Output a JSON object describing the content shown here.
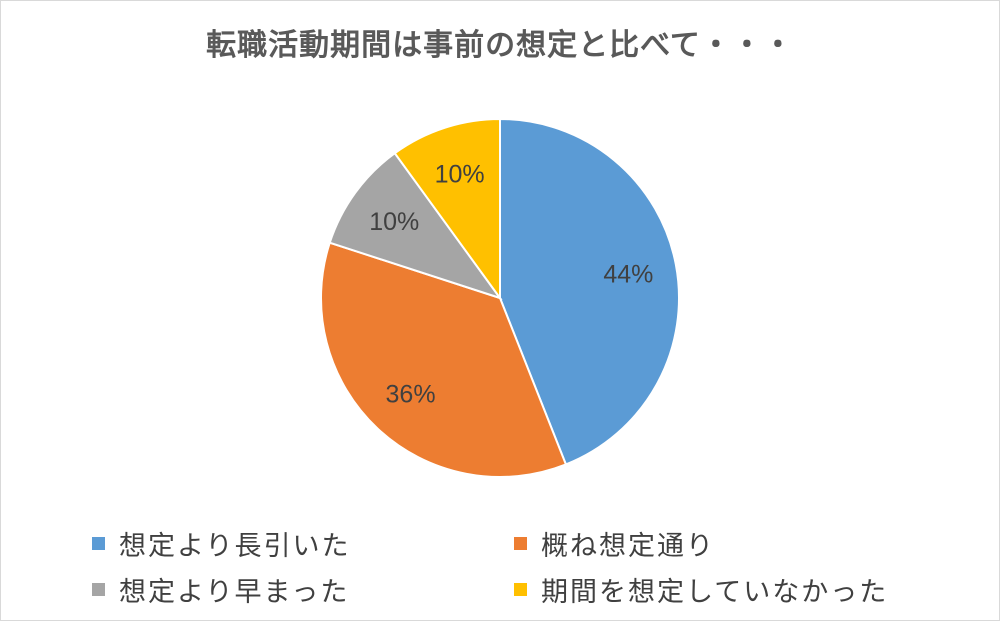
{
  "chart_data": {
    "type": "pie",
    "title": "転職活動期間は事前の想定と比べて・・・",
    "categories": [
      "想定より長引いた",
      "概ね想定通り",
      "想定より早まった",
      "期間を想定していなかった"
    ],
    "values": [
      44,
      36,
      10,
      10
    ],
    "data_labels": [
      "44%",
      "36%",
      "10%",
      "10%"
    ],
    "colors": [
      "#5B9BD5",
      "#ED7D31",
      "#A5A5A5",
      "#FFC000"
    ],
    "legend_position": "bottom"
  }
}
